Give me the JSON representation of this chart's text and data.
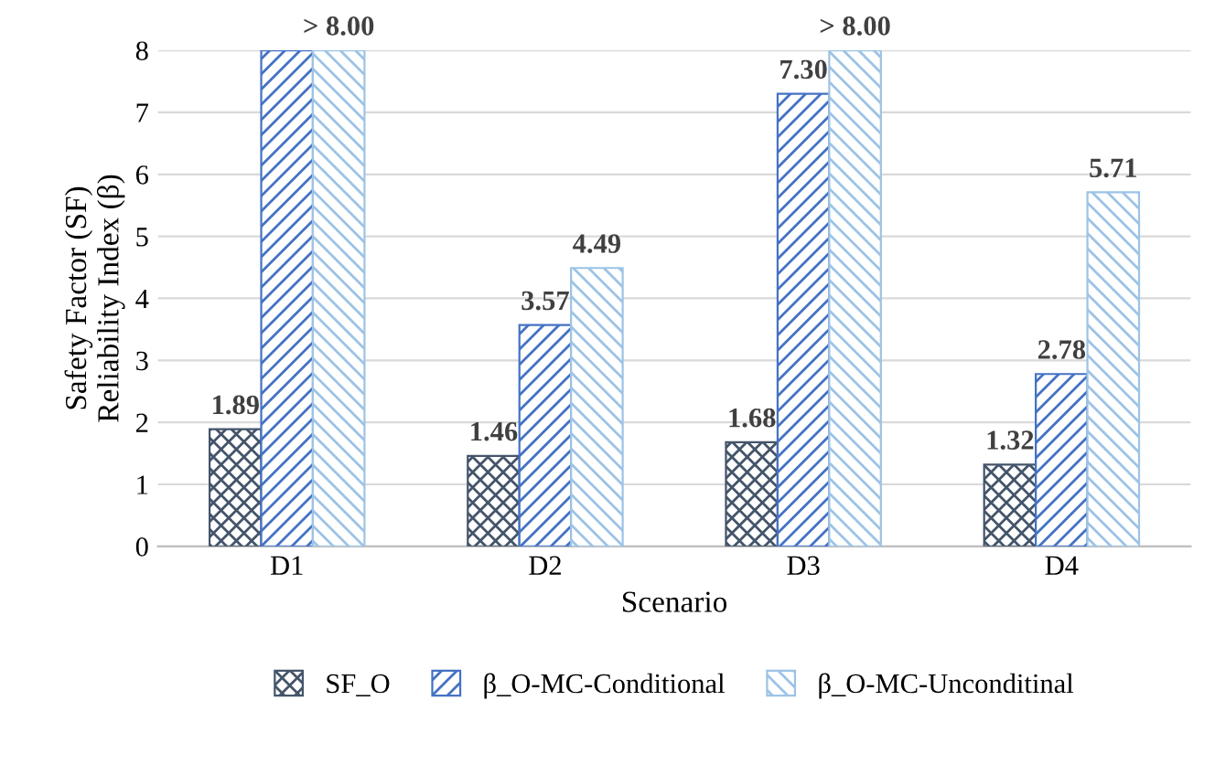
{
  "chart_data": {
    "type": "bar",
    "xlabel": "Scenario",
    "ylabel": "Safety Factor (SF)\nReliability Index (β)",
    "categories": [
      "D1",
      "D2",
      "D3",
      "D4"
    ],
    "series": [
      {
        "name": "SF_O",
        "color": "#44546a",
        "values": [
          1.89,
          1.46,
          1.68,
          1.32
        ],
        "value_labels": [
          "1.89",
          "1.46",
          "1.68",
          "1.32"
        ]
      },
      {
        "name": "β_O-MC-Conditional",
        "color": "#4472c4",
        "values": [
          8,
          3.57,
          7.3,
          2.78
        ],
        "value_labels": [
          null,
          "3.57",
          "7.30",
          "2.78"
        ]
      },
      {
        "name": "β_O-MC-Unconditinal",
        "color": "#9dc3e6",
        "values": [
          8,
          4.49,
          8,
          5.71
        ],
        "value_labels": [
          "> 8.00",
          "4.49",
          "> 8.00",
          "5.71"
        ]
      }
    ],
    "ylim": [
      0,
      8
    ],
    "yticks": [
      0,
      1,
      2,
      3,
      4,
      5,
      6,
      7,
      8
    ],
    "grid": "y",
    "legend": "bottom"
  }
}
